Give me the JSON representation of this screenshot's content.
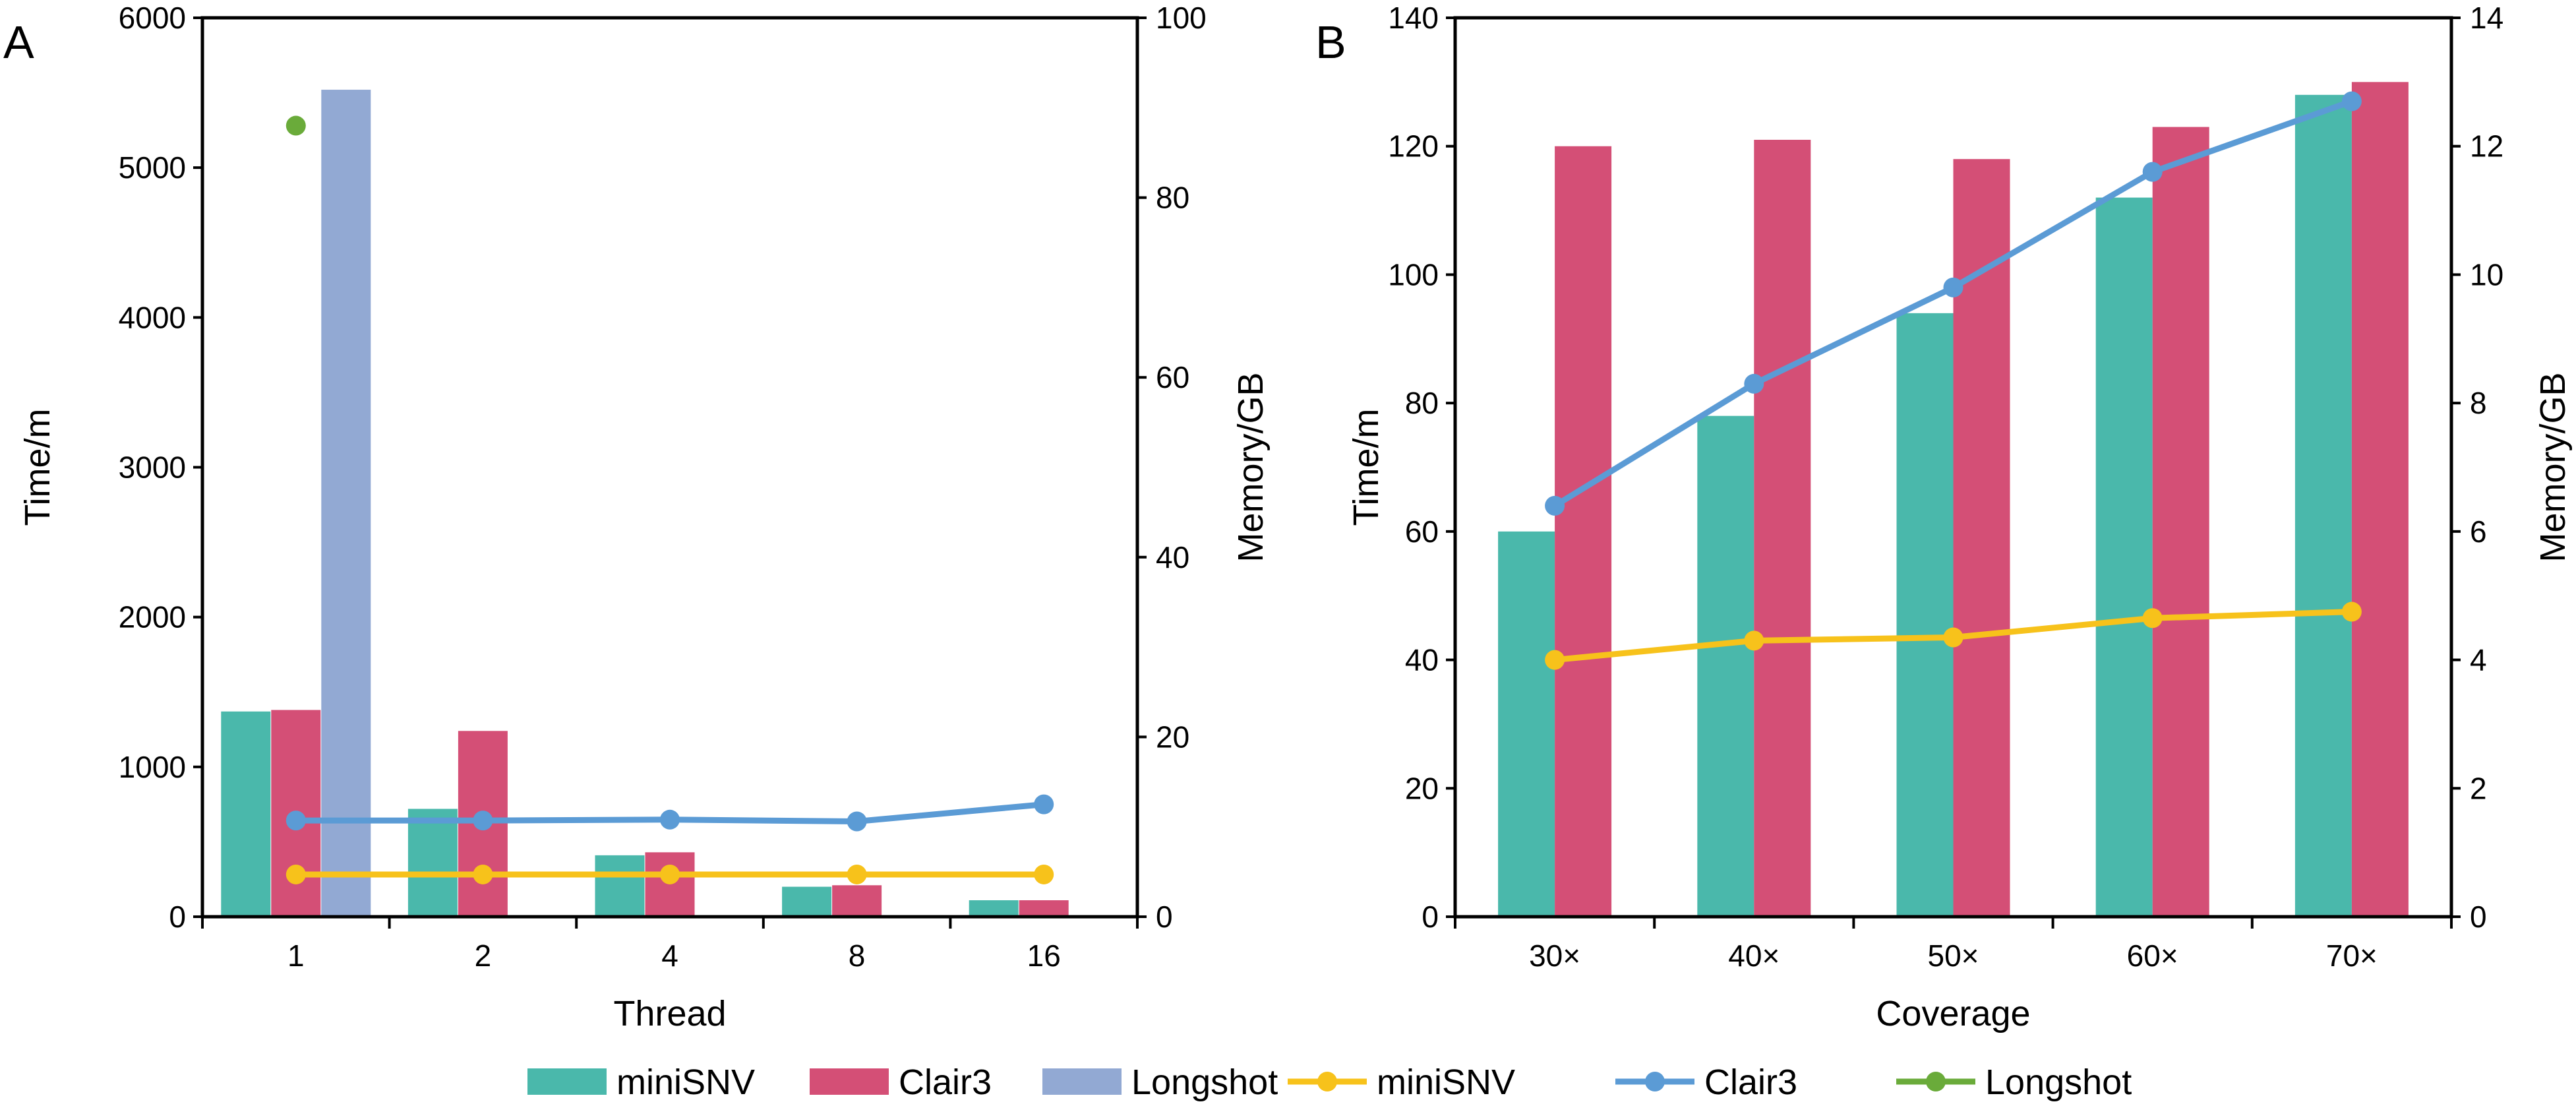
{
  "legend": {
    "items": [
      {
        "kind": "bar",
        "label": "miniSNV",
        "color": "#4ab8ab"
      },
      {
        "kind": "bar",
        "label": "Clair3",
        "color": "#d44f76"
      },
      {
        "kind": "bar",
        "label": "Longshot",
        "color": "#92a9d3"
      },
      {
        "kind": "line",
        "label": "miniSNV",
        "color": "#f7c21b"
      },
      {
        "kind": "line",
        "label": "Clair3",
        "color": "#5b9bd5"
      },
      {
        "kind": "line",
        "label": "Longshot",
        "color": "#6aab3a"
      }
    ]
  },
  "chart_data": [
    {
      "panel": "A",
      "type": "bar",
      "xlabel": "Thread",
      "ylabel": "Time/m",
      "y2label": "Memory/GB",
      "categories": [
        "1",
        "2",
        "4",
        "8",
        "16"
      ],
      "ylim": [
        0,
        6000
      ],
      "yticks": [
        0,
        1000,
        2000,
        3000,
        4000,
        5000,
        6000
      ],
      "y2lim": [
        0,
        100
      ],
      "y2ticks": [
        0,
        20,
        40,
        60,
        80,
        100
      ],
      "bar_series": [
        {
          "name": "miniSNV",
          "color": "#4ab8ab",
          "values": [
            1370,
            720,
            410,
            200,
            110
          ]
        },
        {
          "name": "Clair3",
          "color": "#d44f76",
          "values": [
            1380,
            1240,
            430,
            210,
            110
          ]
        },
        {
          "name": "Longshot",
          "color": "#92a9d3",
          "values": [
            5520,
            null,
            null,
            null,
            null
          ]
        }
      ],
      "line_series": [
        {
          "name": "miniSNV",
          "color": "#f7c21b",
          "axis": "y2",
          "values": [
            4.7,
            4.7,
            4.7,
            4.7,
            4.7
          ]
        },
        {
          "name": "Clair3",
          "color": "#5b9bd5",
          "axis": "y2",
          "values": [
            10.7,
            10.7,
            10.8,
            10.6,
            12.5
          ]
        },
        {
          "name": "Longshot",
          "color": "#6aab3a",
          "axis": "y2",
          "values": [
            88,
            null,
            null,
            null,
            null
          ]
        }
      ]
    },
    {
      "panel": "B",
      "type": "bar",
      "xlabel": "Coverage",
      "ylabel": "Time/m",
      "y2label": "Memory/GB",
      "categories": [
        "30×",
        "40×",
        "50×",
        "60×",
        "70×"
      ],
      "ylim": [
        0,
        140
      ],
      "yticks": [
        0,
        20,
        40,
        60,
        80,
        100,
        120,
        140
      ],
      "y2lim": [
        0,
        14
      ],
      "y2ticks": [
        0,
        2,
        4,
        6,
        8,
        10,
        12,
        14
      ],
      "bar_series": [
        {
          "name": "miniSNV",
          "color": "#4ab8ab",
          "values": [
            60,
            78,
            94,
            112,
            128
          ]
        },
        {
          "name": "Clair3",
          "color": "#d44f76",
          "values": [
            120,
            121,
            118,
            123,
            130
          ]
        }
      ],
      "line_series": [
        {
          "name": "miniSNV",
          "color": "#f7c21b",
          "axis": "y2",
          "values": [
            4.0,
            4.3,
            4.35,
            4.65,
            4.75
          ]
        },
        {
          "name": "Clair3",
          "color": "#5b9bd5",
          "axis": "y2",
          "values": [
            6.4,
            8.3,
            9.8,
            11.6,
            12.7
          ]
        }
      ]
    }
  ]
}
